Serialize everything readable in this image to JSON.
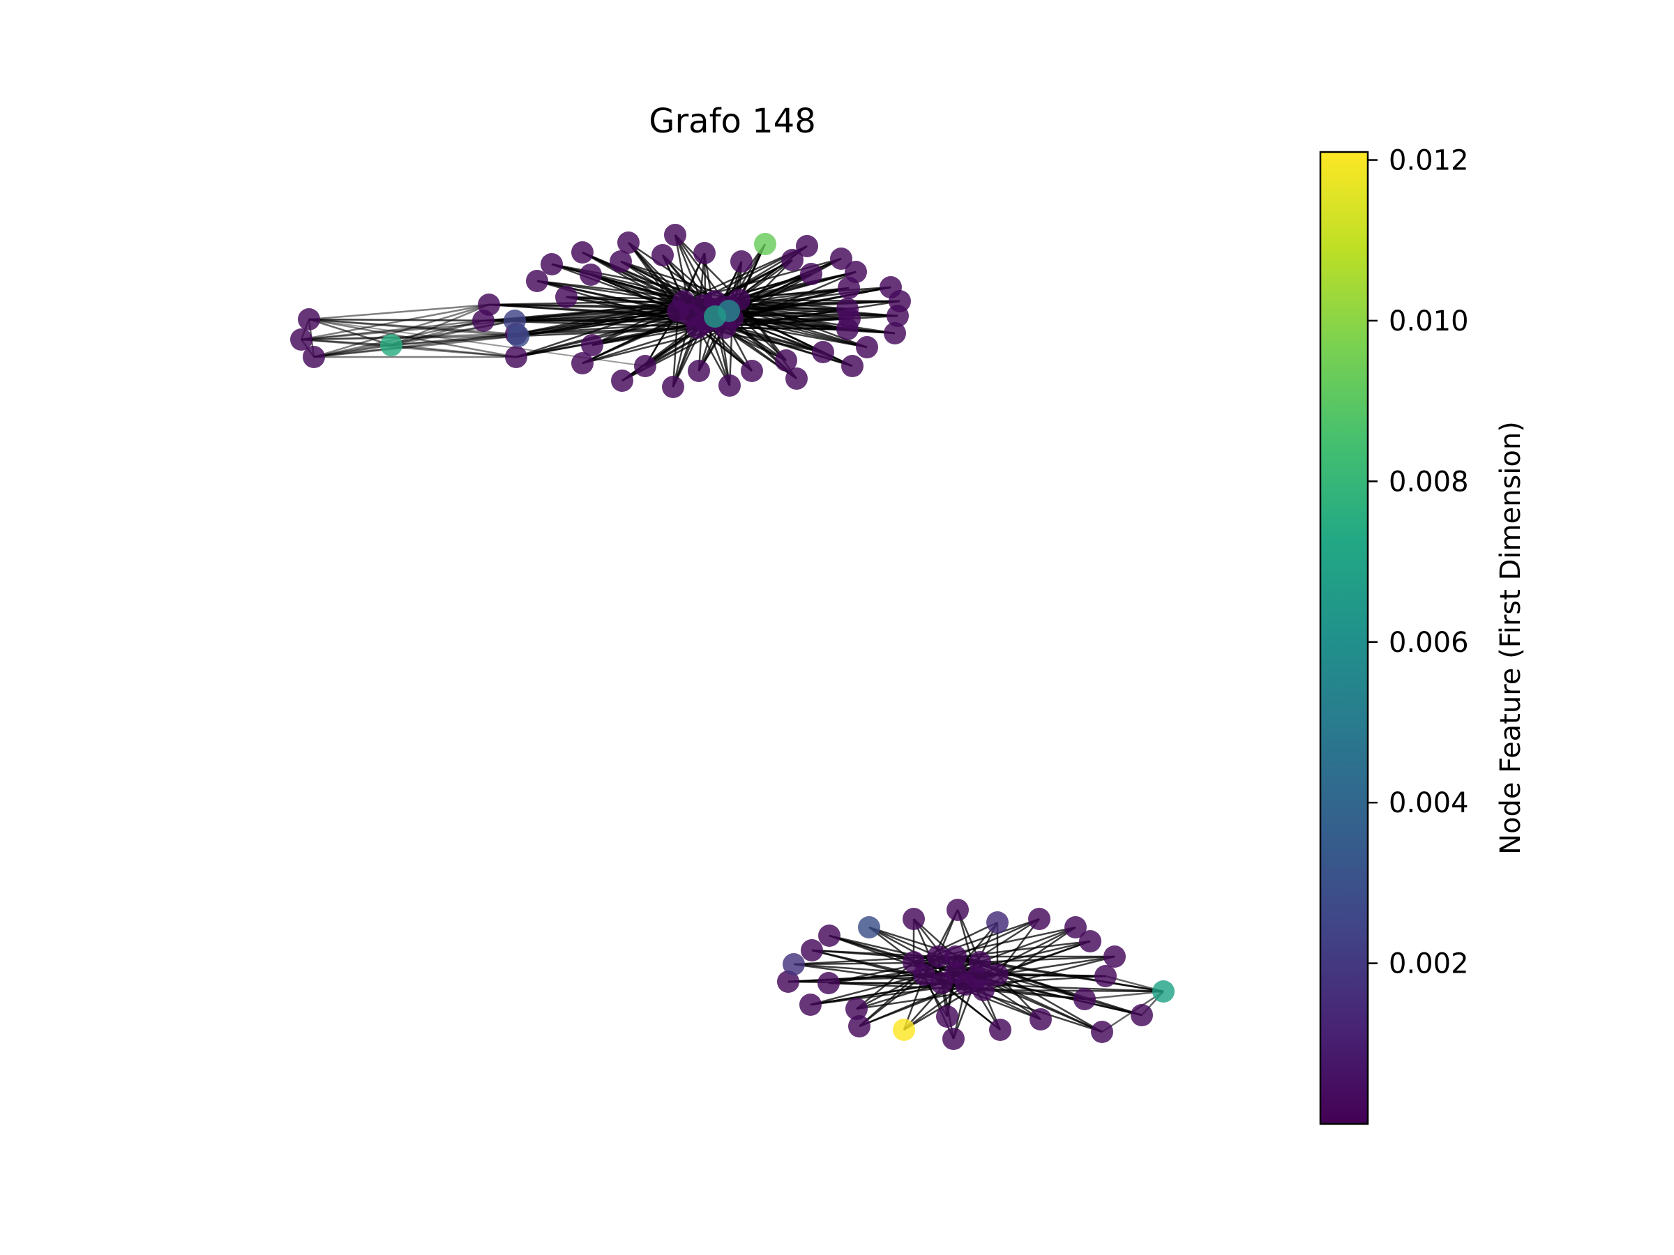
{
  "title": "Grafo 148",
  "colorbar": {
    "label": "Node Feature (First Dimension)",
    "min": 0.0,
    "max": 0.0121,
    "ticks": [
      {
        "value": 0.002,
        "label": "0.002"
      },
      {
        "value": 0.004,
        "label": "0.004"
      },
      {
        "value": 0.006,
        "label": "0.006"
      },
      {
        "value": 0.008,
        "label": "0.008"
      },
      {
        "value": 0.01,
        "label": "0.010"
      },
      {
        "value": 0.012,
        "label": "0.012"
      }
    ],
    "colormap": "viridis"
  },
  "colors": {
    "edge": "#000000",
    "viridis": [
      "#440154",
      "#482475",
      "#414487",
      "#355f8d",
      "#2a788e",
      "#21918c",
      "#22a884",
      "#44bf70",
      "#7ad151",
      "#bddf26",
      "#fde725"
    ]
  }
}
